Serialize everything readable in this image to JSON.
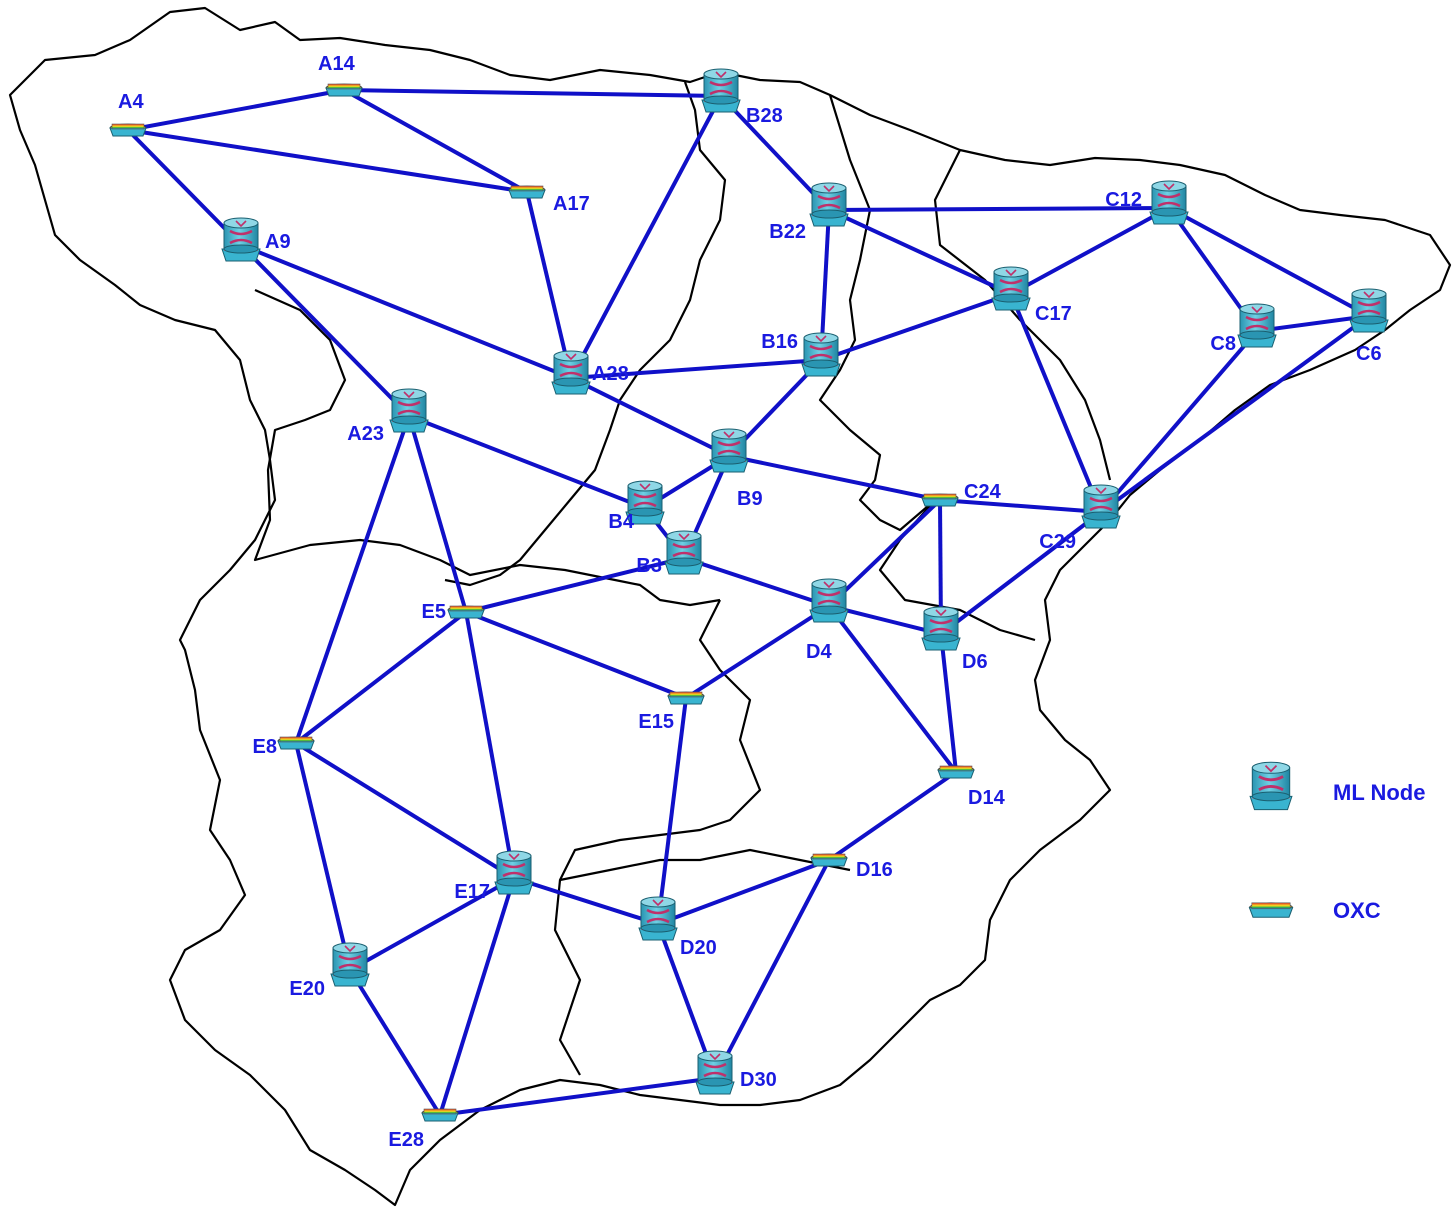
{
  "colors": {
    "link": "#1010c8",
    "label": "#1a1ae0",
    "border": "#000000",
    "node_body": "#39b4d0",
    "node_top": "#8fd7e6",
    "node_arrow": "#c0306a",
    "oxc_stripes": [
      "#e03030",
      "#f08a20",
      "#f0e020",
      "#30b040",
      "#3070e0"
    ]
  },
  "legend": {
    "ml_node_label": "ML Node",
    "oxc_label": "OXC"
  },
  "nodes": [
    {
      "id": "A4",
      "kind": "oxc"
    },
    {
      "id": "A14",
      "kind": "oxc"
    },
    {
      "id": "A17",
      "kind": "oxc"
    },
    {
      "id": "A9",
      "kind": "ml"
    },
    {
      "id": "A28",
      "kind": "ml"
    },
    {
      "id": "A23",
      "kind": "ml"
    },
    {
      "id": "B28",
      "kind": "ml"
    },
    {
      "id": "B22",
      "kind": "ml"
    },
    {
      "id": "B16",
      "kind": "ml"
    },
    {
      "id": "B9",
      "kind": "ml"
    },
    {
      "id": "B4",
      "kind": "ml"
    },
    {
      "id": "B3",
      "kind": "ml"
    },
    {
      "id": "C12",
      "kind": "ml"
    },
    {
      "id": "C17",
      "kind": "ml"
    },
    {
      "id": "C8",
      "kind": "ml"
    },
    {
      "id": "C6",
      "kind": "ml"
    },
    {
      "id": "C24",
      "kind": "oxc"
    },
    {
      "id": "C29",
      "kind": "ml"
    },
    {
      "id": "D4",
      "kind": "ml"
    },
    {
      "id": "D6",
      "kind": "ml"
    },
    {
      "id": "D14",
      "kind": "oxc"
    },
    {
      "id": "D16",
      "kind": "oxc"
    },
    {
      "id": "D20",
      "kind": "ml"
    },
    {
      "id": "D30",
      "kind": "ml"
    },
    {
      "id": "E5",
      "kind": "oxc"
    },
    {
      "id": "E8",
      "kind": "oxc"
    },
    {
      "id": "E15",
      "kind": "oxc"
    },
    {
      "id": "E17",
      "kind": "ml"
    },
    {
      "id": "E20",
      "kind": "ml"
    },
    {
      "id": "E28",
      "kind": "oxc"
    }
  ],
  "links": [
    [
      "A4",
      "A14"
    ],
    [
      "A4",
      "A17"
    ],
    [
      "A4",
      "A9"
    ],
    [
      "A14",
      "A17"
    ],
    [
      "A14",
      "B28"
    ],
    [
      "A17",
      "A28"
    ],
    [
      "A9",
      "A28"
    ],
    [
      "A9",
      "A23"
    ],
    [
      "A28",
      "B28"
    ],
    [
      "A28",
      "B16"
    ],
    [
      "A28",
      "B9"
    ],
    [
      "A23",
      "B4"
    ],
    [
      "A23",
      "E5"
    ],
    [
      "A23",
      "E8"
    ],
    [
      "B28",
      "B22"
    ],
    [
      "B22",
      "B16"
    ],
    [
      "B22",
      "C12"
    ],
    [
      "B22",
      "C17"
    ],
    [
      "B16",
      "C17"
    ],
    [
      "B16",
      "B9"
    ],
    [
      "B9",
      "B4"
    ],
    [
      "B9",
      "B3"
    ],
    [
      "B9",
      "C24"
    ],
    [
      "B4",
      "B3"
    ],
    [
      "B3",
      "E5"
    ],
    [
      "B3",
      "D4"
    ],
    [
      "C12",
      "C17"
    ],
    [
      "C12",
      "C8"
    ],
    [
      "C12",
      "C6"
    ],
    [
      "C8",
      "C6"
    ],
    [
      "C8",
      "C29"
    ],
    [
      "C6",
      "C29"
    ],
    [
      "C17",
      "C29"
    ],
    [
      "C24",
      "C29"
    ],
    [
      "C24",
      "D4"
    ],
    [
      "C24",
      "D6"
    ],
    [
      "C29",
      "D6"
    ],
    [
      "D4",
      "D6"
    ],
    [
      "D4",
      "D14"
    ],
    [
      "D4",
      "E15"
    ],
    [
      "D6",
      "D14"
    ],
    [
      "D14",
      "D16"
    ],
    [
      "D16",
      "D20"
    ],
    [
      "D16",
      "D30"
    ],
    [
      "D20",
      "D30"
    ],
    [
      "D20",
      "E15"
    ],
    [
      "D20",
      "E17"
    ],
    [
      "E5",
      "E8"
    ],
    [
      "E5",
      "E15"
    ],
    [
      "E5",
      "E17"
    ],
    [
      "E8",
      "E17"
    ],
    [
      "E8",
      "E20"
    ],
    [
      "E17",
      "E20"
    ],
    [
      "E17",
      "E28"
    ],
    [
      "E20",
      "E28"
    ],
    [
      "E28",
      "D30"
    ]
  ]
}
